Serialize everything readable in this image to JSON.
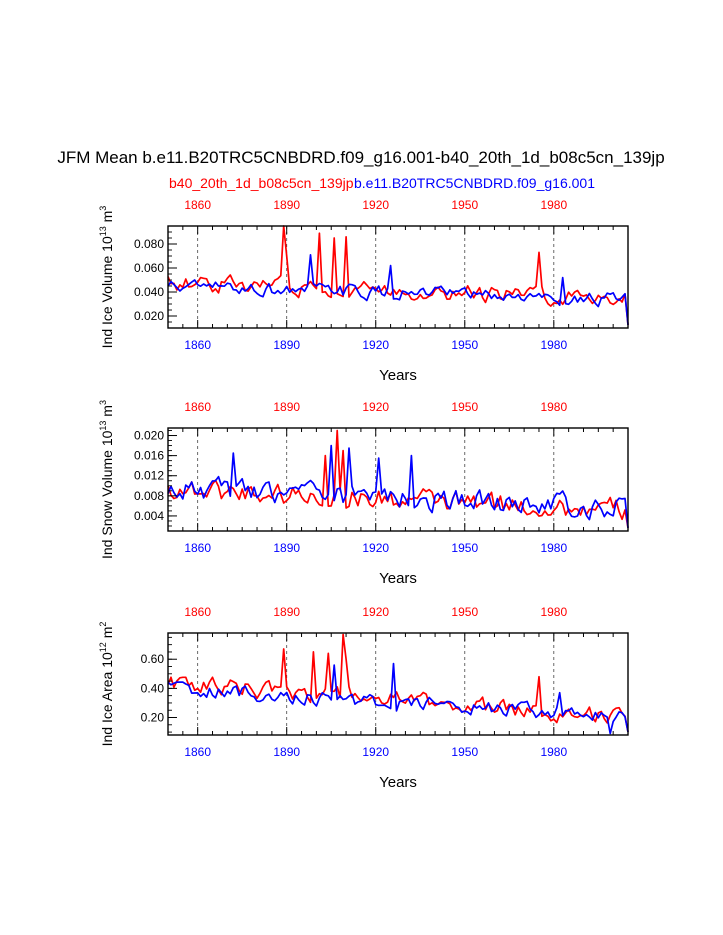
{
  "chart_data": {
    "type": "line",
    "title": "JFM Mean b.e11.B20TRC5CNBDRD.f09_g16.001-b40_20th_1d_b08c5cn_139jp",
    "legend": {
      "left": {
        "text": "b40_20th_1d_b08c5cn_139jp",
        "color": "#ff0000"
      },
      "right": {
        "text": "b.e11.B20TRC5CNBDRD.f09_g16.001",
        "color": "#0000ff"
      }
    },
    "colors": {
      "red": "#ff0000",
      "blue": "#0000ff",
      "axis": "#000000",
      "grid": "#444444"
    },
    "years_start": 1850,
    "years_end": 2005,
    "xlim": [
      1850,
      2005
    ],
    "xticks": [
      "1860",
      "1890",
      "1920",
      "1950",
      "1980"
    ],
    "xtick_values": [
      1860,
      1890,
      1920,
      1950,
      1980
    ],
    "xlabel": "Years",
    "panels": [
      {
        "ylabel_main": "Ind Ice Volume 10",
        "ylabel_exp": "13",
        "ylabel_unit": " m",
        "ylabel_unit_exp": "3",
        "ylim": [
          0.01,
          0.095
        ],
        "yticks": [
          "0.020",
          "0.040",
          "0.060",
          "0.080"
        ],
        "ytick_values": [
          0.02,
          0.04,
          0.06,
          0.08
        ],
        "minor_step": 0.005,
        "series": [
          {
            "name": "b40_20th_1d_b08c5cn_139jp",
            "color": "#ff0000",
            "base": 0.048,
            "trend": -0.013,
            "amp": 0.011,
            "spikes": [
              [
                1889,
                0.097
              ],
              [
                1890,
                0.07
              ],
              [
                1901,
                0.089
              ],
              [
                1906,
                0.085
              ],
              [
                1910,
                0.086
              ],
              [
                1975,
                0.073
              ]
            ]
          },
          {
            "name": "b.e11.B20TRC5CNBDRD.f09_g16.001",
            "color": "#0000ff",
            "base": 0.045,
            "trend": -0.012,
            "amp": 0.009,
            "spikes": [
              [
                1898,
                0.071
              ],
              [
                1925,
                0.062
              ],
              [
                1983,
                0.052
              ]
            ]
          }
        ]
      },
      {
        "ylabel_main": "Ind Snow Volume 10",
        "ylabel_exp": "13",
        "ylabel_unit": " m",
        "ylabel_unit_exp": "3",
        "ylim": [
          0.001,
          0.0215
        ],
        "yticks": [
          "0.004",
          "0.008",
          "0.012",
          "0.016",
          "0.020"
        ],
        "ytick_values": [
          0.004,
          0.008,
          0.012,
          0.016,
          0.02
        ],
        "minor_step": 0.001,
        "series": [
          {
            "name": "b40_20th_1d_b08c5cn_139jp",
            "color": "#ff0000",
            "base": 0.0095,
            "trend": -0.0045,
            "amp": 0.0035,
            "spikes": [
              [
                1907,
                0.021
              ],
              [
                1909,
                0.017
              ],
              [
                1903,
                0.016
              ]
            ]
          },
          {
            "name": "b.e11.B20TRC5CNBDRD.f09_g16.001",
            "color": "#0000ff",
            "base": 0.0095,
            "trend": -0.004,
            "amp": 0.0035,
            "spikes": [
              [
                1872,
                0.0165
              ],
              [
                1905,
                0.018
              ],
              [
                1911,
                0.0175
              ],
              [
                1921,
                0.0155
              ],
              [
                1932,
                0.016
              ]
            ]
          }
        ]
      },
      {
        "ylabel_main": "Ind Ice Area 10",
        "ylabel_exp": "12",
        "ylabel_unit": " m",
        "ylabel_unit_exp": "2",
        "ylim": [
          0.08,
          0.78
        ],
        "yticks": [
          "0.20",
          "0.40",
          "0.60"
        ],
        "ytick_values": [
          0.2,
          0.4,
          0.6
        ],
        "minor_step": 0.05,
        "series": [
          {
            "name": "b40_20th_1d_b08c5cn_139jp",
            "color": "#ff0000",
            "base": 0.44,
            "trend": -0.24,
            "amp": 0.09,
            "spikes": [
              [
                1889,
                0.67
              ],
              [
                1899,
                0.65
              ],
              [
                1904,
                0.64
              ],
              [
                1909,
                0.77
              ],
              [
                1910,
                0.6
              ],
              [
                1975,
                0.48
              ]
            ]
          },
          {
            "name": "b.e11.B20TRC5CNBDRD.f09_g16.001",
            "color": "#0000ff",
            "base": 0.4,
            "trend": -0.2,
            "amp": 0.08,
            "spikes": [
              [
                1906,
                0.56
              ],
              [
                1926,
                0.57
              ],
              [
                1982,
                0.37
              ],
              [
                1999,
                0.09
              ]
            ]
          }
        ]
      }
    ]
  }
}
